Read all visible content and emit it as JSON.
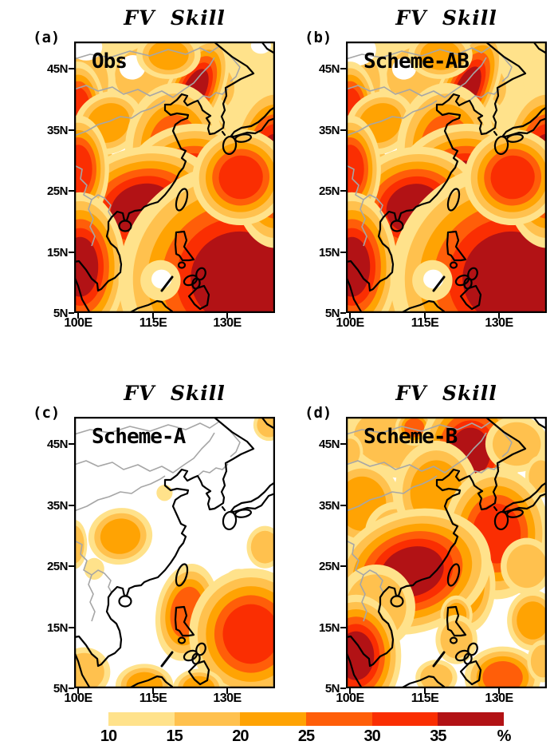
{
  "palette": [
    "#FFFFFF",
    "#FFE28B",
    "#FFC14E",
    "#FFA303",
    "#FF5E09",
    "#FA2E02",
    "#B21215"
  ],
  "map_colors": {
    "coast": "#000000",
    "borders": "#A6A6A6",
    "frame": "#000000"
  },
  "axes": {
    "y": [
      {
        "label": "45N",
        "f": 0.1
      },
      {
        "label": "35N",
        "f": 0.325
      },
      {
        "label": "25N",
        "f": 0.55
      },
      {
        "label": "15N",
        "f": 0.775
      },
      {
        "label": "5N",
        "f": 1.0
      }
    ],
    "x": [
      {
        "label": "100E",
        "f": 0.02
      },
      {
        "label": "115E",
        "f": 0.393
      },
      {
        "label": "130E",
        "f": 0.762
      }
    ]
  },
  "panels": [
    {
      "letter": "(a)",
      "title": "FV  Skill",
      "label": "Obs",
      "base": 1,
      "features": [
        [
          0.5,
          0.15,
          0.3,
          0.14,
          10,
          2
        ],
        [
          0.15,
          0.5,
          0.22,
          0.2,
          0,
          2
        ],
        [
          0.55,
          0.45,
          0.25,
          0.22,
          0,
          2
        ],
        [
          0.8,
          0.75,
          0.28,
          0.26,
          0,
          2
        ],
        [
          0.25,
          0.85,
          0.22,
          0.15,
          0,
          2
        ],
        [
          0.05,
          0.15,
          0.12,
          0.12,
          0,
          2
        ],
        [
          0.95,
          0.3,
          0.1,
          0.08,
          0,
          2
        ],
        [
          0.06,
          0.02,
          0.08,
          0.05,
          0,
          0
        ],
        [
          0.29,
          0.095,
          0.065,
          0.045,
          -10,
          0
        ],
        [
          0.255,
          0.385,
          0.08,
          0.05,
          -15,
          0
        ],
        [
          0.93,
          0.015,
          0.05,
          0.03,
          0,
          0
        ],
        [
          0.6,
          0.18,
          0.055,
          0.085,
          25,
          6
        ],
        [
          0.02,
          0.25,
          0.06,
          0.08,
          0,
          5
        ],
        [
          0.17,
          0.3,
          0.11,
          0.07,
          -30,
          3
        ],
        [
          0.47,
          0.05,
          0.1,
          0.055,
          0,
          3
        ],
        [
          0.5,
          0.4,
          0.13,
          0.13,
          0,
          4
        ],
        [
          0.58,
          0.53,
          0.14,
          0.09,
          -15,
          6
        ],
        [
          0.34,
          0.615,
          0.16,
          0.09,
          -15,
          6
        ],
        [
          0.02,
          0.47,
          0.07,
          0.09,
          0,
          5
        ],
        [
          0.03,
          0.83,
          0.09,
          0.11,
          0,
          6
        ],
        [
          0.82,
          0.87,
          0.24,
          0.17,
          -10,
          6
        ],
        [
          1.0,
          0.46,
          0.09,
          0.12,
          0,
          6
        ],
        [
          0.83,
          0.5,
          0.11,
          0.08,
          -25,
          5
        ],
        [
          0.43,
          0.88,
          0.1,
          0.075,
          0,
          1
        ],
        [
          0.435,
          0.875,
          0.05,
          0.035,
          0,
          0
        ]
      ]
    },
    {
      "letter": "(b)",
      "title": "FV  Skill",
      "label": "Scheme-AB",
      "base": 1,
      "features": [
        [
          0.5,
          0.15,
          0.3,
          0.14,
          10,
          2
        ],
        [
          0.15,
          0.5,
          0.22,
          0.2,
          0,
          2
        ],
        [
          0.55,
          0.45,
          0.25,
          0.22,
          0,
          2
        ],
        [
          0.8,
          0.75,
          0.28,
          0.26,
          0,
          2
        ],
        [
          0.25,
          0.85,
          0.22,
          0.15,
          0,
          2
        ],
        [
          0.05,
          0.15,
          0.12,
          0.12,
          0,
          2
        ],
        [
          0.95,
          0.3,
          0.1,
          0.08,
          0,
          2
        ],
        [
          0.05,
          0.03,
          0.1,
          0.06,
          0,
          0
        ],
        [
          0.29,
          0.1,
          0.06,
          0.04,
          -10,
          0
        ],
        [
          0.26,
          0.39,
          0.075,
          0.05,
          -15,
          0
        ],
        [
          0.72,
          0.0,
          0.05,
          0.03,
          0,
          0
        ],
        [
          0.6,
          0.18,
          0.055,
          0.095,
          25,
          6
        ],
        [
          0.02,
          0.25,
          0.06,
          0.08,
          0,
          5
        ],
        [
          0.17,
          0.3,
          0.11,
          0.07,
          -30,
          3
        ],
        [
          0.47,
          0.05,
          0.1,
          0.055,
          0,
          3
        ],
        [
          0.5,
          0.4,
          0.13,
          0.13,
          0,
          4
        ],
        [
          0.58,
          0.53,
          0.14,
          0.09,
          -15,
          6
        ],
        [
          0.34,
          0.615,
          0.14,
          0.09,
          -15,
          6
        ],
        [
          0.02,
          0.47,
          0.07,
          0.09,
          0,
          5
        ],
        [
          0.03,
          0.83,
          0.09,
          0.11,
          0,
          6
        ],
        [
          0.82,
          0.87,
          0.24,
          0.17,
          -10,
          6
        ],
        [
          1.0,
          0.46,
          0.09,
          0.12,
          0,
          6
        ],
        [
          0.83,
          0.5,
          0.11,
          0.08,
          -25,
          5
        ],
        [
          0.43,
          0.88,
          0.1,
          0.075,
          0,
          1
        ],
        [
          0.435,
          0.875,
          0.05,
          0.035,
          0,
          0
        ]
      ]
    },
    {
      "letter": "(c)",
      "title": "FV  Skill",
      "label": "Scheme-A",
      "base": 0,
      "features": [
        [
          0.97,
          0.03,
          0.06,
          0.045,
          0,
          2
        ],
        [
          0.45,
          0.28,
          0.04,
          0.03,
          0,
          1
        ],
        [
          0.1,
          0.56,
          0.05,
          0.04,
          0,
          1
        ],
        [
          0.0,
          0.47,
          0.05,
          0.07,
          0,
          2
        ],
        [
          0.82,
          0.62,
          0.08,
          0.06,
          0,
          1
        ],
        [
          0.95,
          0.48,
          0.07,
          0.06,
          0,
          2
        ],
        [
          0.23,
          0.44,
          0.1,
          0.065,
          -10,
          3
        ],
        [
          0.56,
          0.72,
          0.08,
          0.095,
          10,
          4
        ],
        [
          0.88,
          0.8,
          0.14,
          0.11,
          0,
          5
        ],
        [
          0.05,
          0.94,
          0.1,
          0.07,
          0,
          2
        ],
        [
          0.35,
          0.99,
          0.09,
          0.05,
          0,
          3
        ],
        [
          0.62,
          1.0,
          0.08,
          0.045,
          0,
          3
        ]
      ]
    },
    {
      "letter": "(d)",
      "title": "FV  Skill",
      "label": "Scheme-B",
      "base": 0,
      "features": [
        [
          0.3,
          0.07,
          0.26,
          0.12,
          0,
          2
        ],
        [
          0.34,
          0.04,
          0.05,
          0.035,
          0,
          4
        ],
        [
          0.62,
          0.13,
          0.1,
          0.09,
          0,
          6
        ],
        [
          0.85,
          0.1,
          0.12,
          0.08,
          0,
          2
        ],
        [
          0.97,
          0.22,
          0.06,
          0.06,
          0,
          2
        ],
        [
          0.02,
          0.13,
          0.05,
          0.05,
          0,
          2
        ],
        [
          0.08,
          0.32,
          0.12,
          0.1,
          0,
          3
        ],
        [
          0.25,
          0.43,
          0.12,
          0.09,
          0,
          2
        ],
        [
          0.45,
          0.28,
          0.13,
          0.12,
          0,
          3
        ],
        [
          0.75,
          0.43,
          0.12,
          0.11,
          0,
          5
        ],
        [
          0.9,
          0.55,
          0.1,
          0.08,
          0,
          2
        ],
        [
          0.6,
          0.62,
          0.09,
          0.11,
          0,
          3
        ],
        [
          0.33,
          0.57,
          0.16,
          0.09,
          -18,
          6
        ],
        [
          0.15,
          0.7,
          0.15,
          0.12,
          0,
          2
        ],
        [
          0.05,
          0.88,
          0.09,
          0.09,
          0,
          6
        ],
        [
          0.93,
          0.75,
          0.08,
          0.07,
          0,
          3
        ],
        [
          0.55,
          0.73,
          0.05,
          0.045,
          0,
          3
        ],
        [
          0.55,
          0.82,
          0.08,
          0.07,
          0,
          2
        ],
        [
          0.78,
          0.96,
          0.1,
          0.06,
          0,
          4
        ],
        [
          0.45,
          0.96,
          0.08,
          0.05,
          0,
          2
        ],
        [
          0.98,
          0.9,
          0.06,
          0.06,
          0,
          2
        ]
      ]
    }
  ],
  "colorbar": {
    "labels": [
      "10",
      "15",
      "20",
      "25",
      "30",
      "35"
    ],
    "unit": "%",
    "colors": [
      "#FFE28B",
      "#FFC14E",
      "#FFA303",
      "#FF5E09",
      "#FA2E02",
      "#B21215"
    ]
  },
  "chart_data": {
    "type": "heatmap",
    "title": "FV Skill",
    "unit": "%",
    "contour_levels_pct": [
      10,
      15,
      20,
      25,
      30,
      35
    ],
    "level_colors": [
      "#FFE28B",
      "#FFC14E",
      "#FFA303",
      "#FF5E09",
      "#FA2E02",
      "#B21215"
    ],
    "lon_range_deg_east": [
      100,
      139.5
    ],
    "lat_range_deg_north": [
      5,
      49.5
    ],
    "x_ticks": [
      "100E",
      "115E",
      "130E"
    ],
    "y_ticks": [
      "5N",
      "15N",
      "25N",
      "35N",
      "45N"
    ],
    "legend_position": "bottom",
    "panels": [
      {
        "label": "(a)",
        "name": "Obs",
        "summary": "High FV skill (25-40%) over South China, the Yalu/Korea region, the East China Sea and the tropical western Pacific; below-10% pockets in the northwest, near 25N/104E and south-central ocean."
      },
      {
        "label": "(b)",
        "name": "Scheme-AB",
        "summary": "Pattern nearly identical to Obs: 25-40% maxima over South China, Korea border region, East China Sea and tropical western Pacific."
      },
      {
        "label": "(c)",
        "name": "Scheme-A",
        "summary": "Mostly below 10% skill; isolated 10-30% patches over southwest China (~27N,108E), Luzon, and a 25-35% maximum near 133E,12N."
      },
      {
        "label": "(d)",
        "name": "Scheme-B",
        "summary": "Broad 10-25% skill with 30-40% cores along the South China coast, northeast of Korea, the seas east of Korea/Japan, and near southern Vietnam."
      }
    ]
  }
}
